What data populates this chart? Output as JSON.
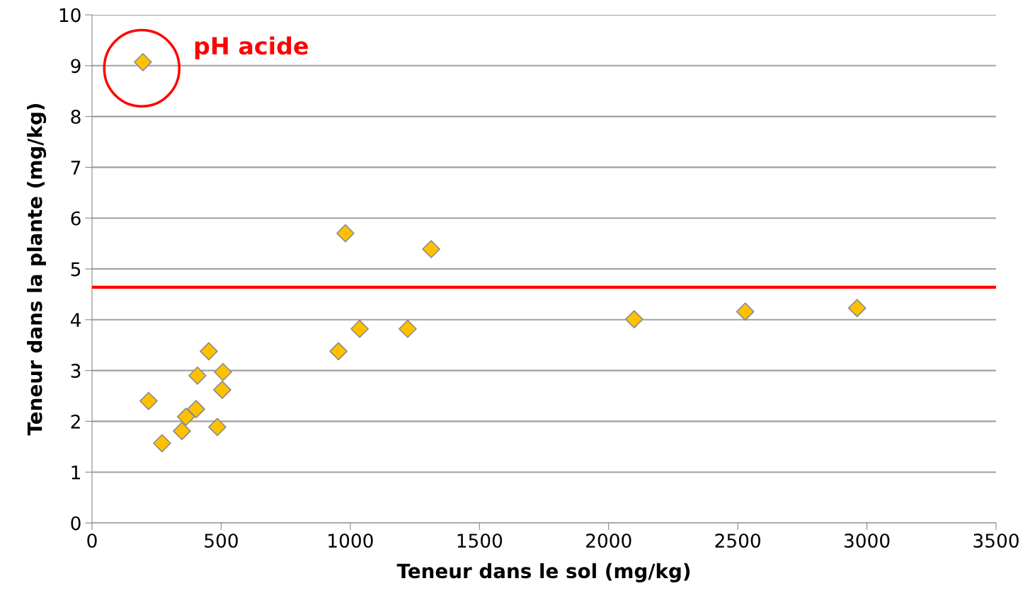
{
  "chart_data": {
    "type": "scatter",
    "xlabel": "Teneur dans le sol (mg/kg)",
    "ylabel": "Teneur dans la plante (mg/kg)",
    "x": [
      197,
      219,
      271,
      348,
      364,
      403,
      408,
      452,
      485,
      507,
      504,
      954,
      981,
      1036,
      1222,
      1313,
      2099,
      2529,
      2962
    ],
    "series": [
      {
        "color": "#ffc000",
        "values": [
          9.07,
          2.4,
          1.57,
          1.81,
          2.09,
          2.24,
          2.9,
          3.38,
          1.89,
          2.97,
          2.62,
          3.38,
          5.7,
          3.82,
          3.82,
          5.39,
          4.01,
          4.16,
          4.23
        ]
      }
    ],
    "xlim": [
      0,
      3500
    ],
    "xticks": [
      0,
      500,
      1000,
      1500,
      2000,
      2500,
      3000,
      3500
    ],
    "ylim": [
      0,
      10
    ],
    "yticks": [
      0,
      1,
      2,
      3,
      4,
      5,
      6,
      7,
      8,
      9,
      10
    ],
    "grid": "y",
    "marker": "diamond",
    "ref_lines": [
      {
        "axis": "y",
        "value": 4.64,
        "color": "#ff0000",
        "line_style": "solid"
      }
    ],
    "annotations": [
      "pH acide"
    ]
  }
}
